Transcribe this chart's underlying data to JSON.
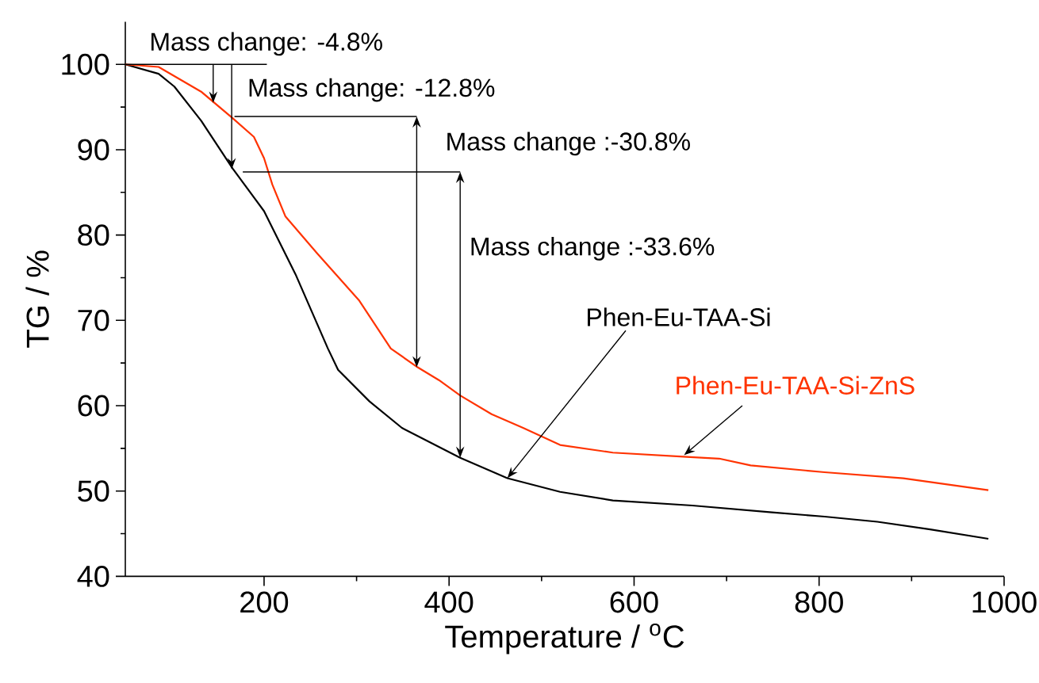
{
  "chart_data": {
    "type": "line",
    "xlabel": "Temperature / $^{o}$C",
    "ylabel": "TG / %",
    "xlim": [
      50,
      1000
    ],
    "xticks": [
      200,
      400,
      600,
      800,
      1000
    ],
    "ylim": [
      40,
      105
    ],
    "yticks": [
      40,
      50,
      60,
      70,
      80,
      90,
      100
    ],
    "grid": false,
    "legend": false,
    "marker": "none",
    "line_style": "solid",
    "series": [
      {
        "name": "Phen-Eu-TAA-Si",
        "color": "#000000",
        "x": [
          50,
          86,
          103,
          132,
          166,
          200,
          234,
          269,
          280,
          314,
          349,
          412,
          463,
          520,
          577,
          663,
          749,
          806,
          863,
          920,
          983
        ],
        "values": [
          100,
          98.9,
          97.4,
          93.4,
          87.8,
          82.8,
          75.4,
          66.7,
          64.2,
          60.5,
          57.4,
          53.9,
          51.5,
          49.9,
          48.9,
          48.3,
          47.5,
          47.0,
          46.4,
          45.5,
          44.4
        ]
      },
      {
        "name": "Phen-Eu-TAA-Si-ZnS",
        "color": "#ff3300",
        "x": [
          50,
          86,
          132,
          166,
          189,
          200,
          209,
          223,
          257,
          303,
          337,
          366,
          389,
          412,
          446,
          480,
          520,
          577,
          657,
          692,
          726,
          806,
          891,
          983
        ],
        "values": [
          100,
          99.7,
          96.8,
          93.7,
          91.5,
          89.0,
          85.9,
          82.2,
          77.9,
          72.3,
          66.7,
          64.5,
          63.0,
          61.2,
          59.0,
          57.4,
          55.4,
          54.5,
          54.0,
          53.8,
          53.0,
          52.2,
          51.5,
          50.1
        ]
      }
    ],
    "annotations": [
      {
        "text": "Mass change: -4.8%",
        "x": 145,
        "y": 95.5
      },
      {
        "text": "Mass change: -12.8%",
        "x": 165,
        "y": 87.7
      },
      {
        "text": "Mass change :-30.8%",
        "x": 365,
        "y": 64.5
      },
      "Mass change :-33.6%"
    ]
  }
}
